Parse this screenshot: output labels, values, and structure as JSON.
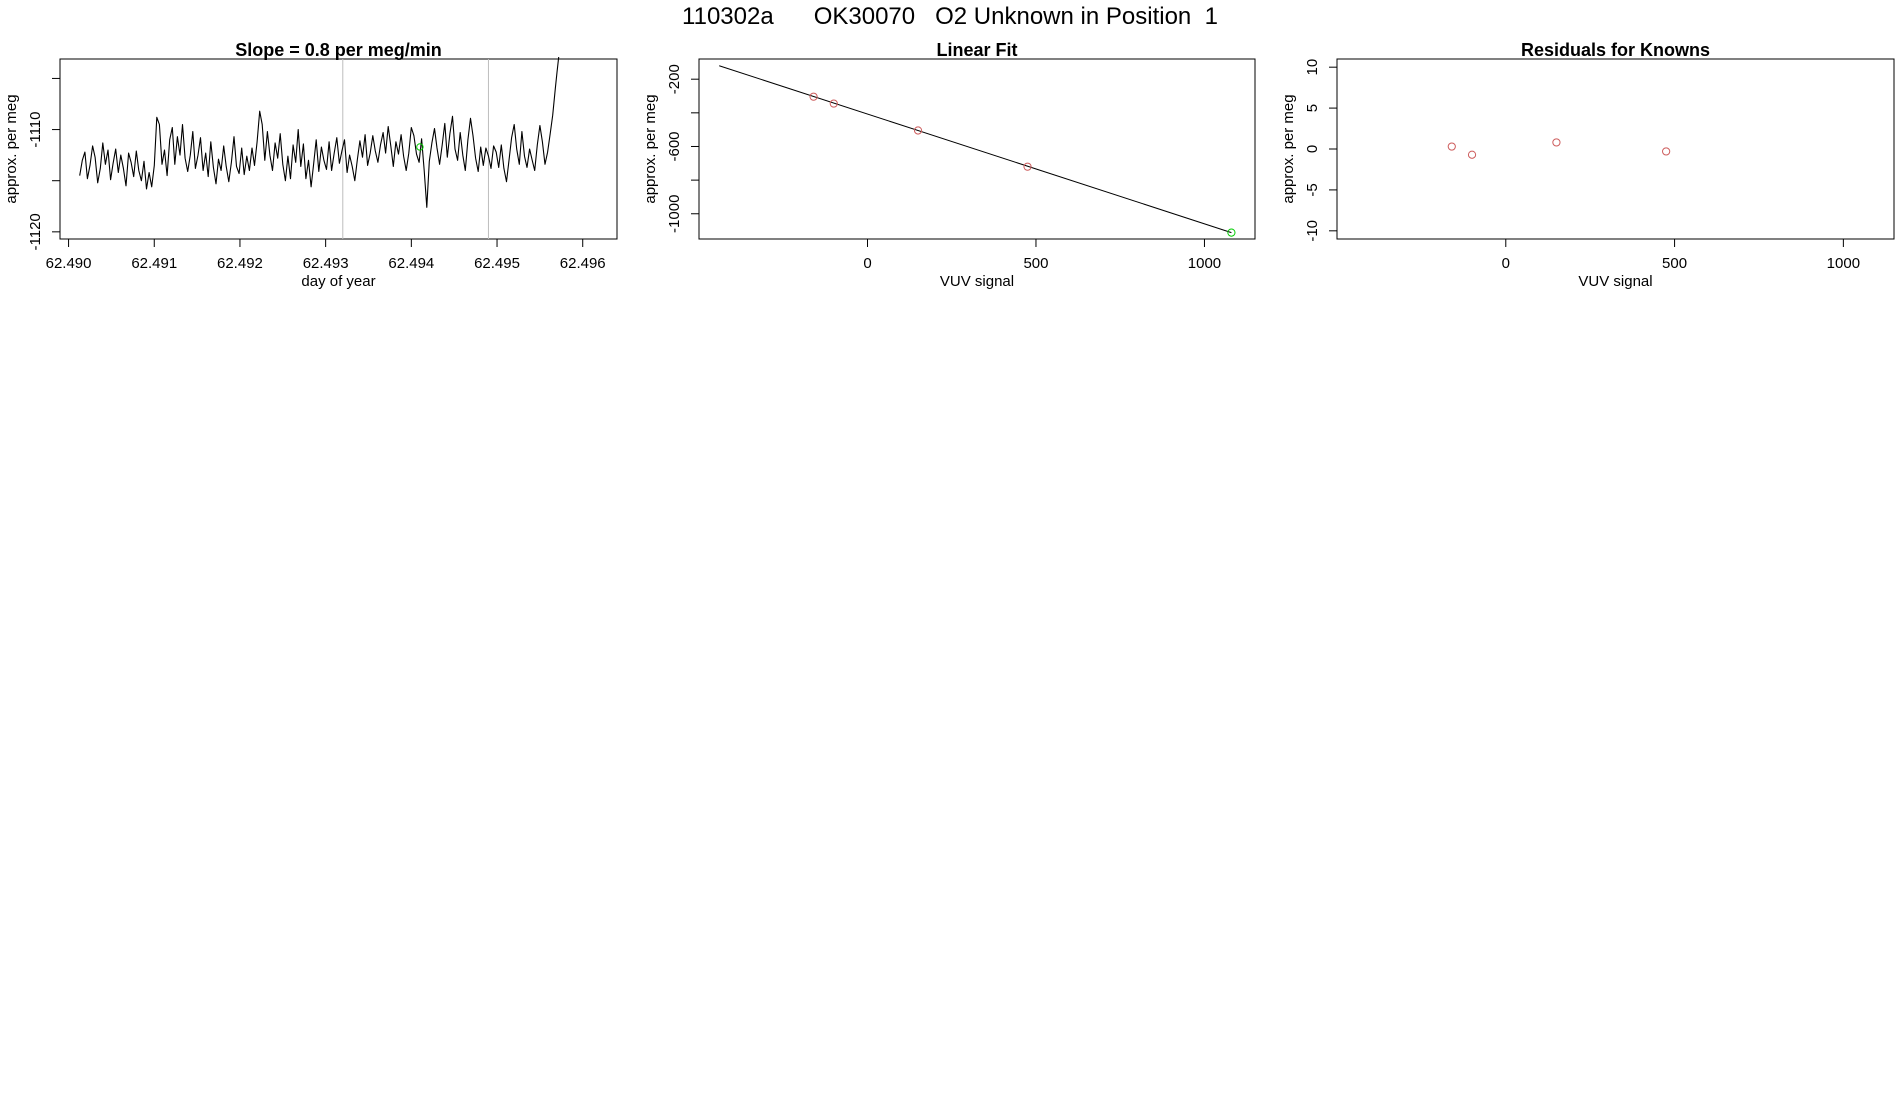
{
  "page": {
    "title": "110302a      OK30070   O2 Unknown in Position  1"
  },
  "colors": {
    "line": "#000000",
    "known": "#cd5c5c",
    "unknown": "#00cd00",
    "guide": "#bebebe"
  },
  "chart_data": [
    {
      "type": "line",
      "title": "Slope =  0.8  per meg/min",
      "xlabel": "day of year",
      "ylabel": "approx. per meg",
      "xlim": [
        62.4899,
        62.4964
      ],
      "ylim": [
        -1120.7,
        -1103.1
      ],
      "xticks": [
        62.49,
        62.491,
        62.492,
        62.493,
        62.494,
        62.495,
        62.496
      ],
      "xtick_labels": [
        "62.490",
        "62.491",
        "62.492",
        "62.493",
        "62.494",
        "62.495",
        "62.496"
      ],
      "yticks": [
        -1120,
        -1115,
        -1110,
        -1105
      ],
      "ytick_labels": [
        "-1120",
        "",
        "-1110",
        ""
      ],
      "vlines": [
        62.4932,
        62.4949
      ],
      "highlight_point": {
        "x": 62.4941,
        "y": -1111.7
      },
      "series": [
        {
          "x": [
            62.49013,
            62.49016,
            62.49019,
            62.49022,
            62.49025,
            62.49028,
            62.49031,
            62.49034,
            62.49037,
            62.4904,
            62.49043,
            62.49046,
            62.49049,
            62.49052,
            62.49055,
            62.49058,
            62.49061,
            62.49064,
            62.49067,
            62.4907,
            62.49073,
            62.49076,
            62.49079,
            62.49082,
            62.49085,
            62.49088,
            62.49091,
            62.49094,
            62.49097,
            62.491,
            62.49103,
            62.49106,
            62.49109,
            62.49112,
            62.49115,
            62.49118,
            62.49121,
            62.49124,
            62.49127,
            62.4913,
            62.49133,
            62.49136,
            62.49139,
            62.49142,
            62.49145,
            62.49148,
            62.49151,
            62.49154,
            62.49157,
            62.4916,
            62.49163,
            62.49166,
            62.49169,
            62.49172,
            62.49175,
            62.49178,
            62.49181,
            62.49184,
            62.49187,
            62.4919,
            62.49193,
            62.49196,
            62.49199,
            62.49202,
            62.49205,
            62.49208,
            62.49211,
            62.49214,
            62.49217,
            62.4922,
            62.49223,
            62.49226,
            62.49229,
            62.49232,
            62.49235,
            62.49238,
            62.49241,
            62.49244,
            62.49247,
            62.4925,
            62.49253,
            62.49256,
            62.49259,
            62.49262,
            62.49265,
            62.49268,
            62.49271,
            62.49274,
            62.49277,
            62.4928,
            62.49283,
            62.49286,
            62.49289,
            62.49292,
            62.49295,
            62.49298,
            62.49301,
            62.49304,
            62.49307,
            62.4931,
            62.49313,
            62.49316,
            62.49319,
            62.49322,
            62.49325,
            62.49328,
            62.49331,
            62.49334,
            62.49337,
            62.4934,
            62.49343,
            62.49346,
            62.49349,
            62.49352,
            62.49355,
            62.49358,
            62.49361,
            62.49364,
            62.49367,
            62.4937,
            62.49373,
            62.49376,
            62.49379,
            62.49382,
            62.49385,
            62.49388,
            62.49391,
            62.49394,
            62.49397,
            62.494,
            62.49403,
            62.49406,
            62.49409,
            62.49412,
            62.49415,
            62.49418,
            62.49421,
            62.49424,
            62.49427,
            62.4943,
            62.49433,
            62.49436,
            62.49439,
            62.49442,
            62.49445,
            62.49448,
            62.49451,
            62.49454,
            62.49457,
            62.4946,
            62.49463,
            62.49466,
            62.49469,
            62.49472,
            62.49475,
            62.49478,
            62.49481,
            62.49484,
            62.49487,
            62.4949,
            62.49493,
            62.49496,
            62.49499,
            62.49502,
            62.49505,
            62.49508,
            62.49511,
            62.49514,
            62.49517,
            62.4952,
            62.49523,
            62.49526,
            62.49529,
            62.49532,
            62.49535,
            62.49538,
            62.49541,
            62.49544,
            62.49547,
            62.4955,
            62.49553,
            62.49556,
            62.49559,
            62.49562,
            62.49565,
            62.49568,
            62.4957,
            62.49572
          ],
          "y": [
            -1114.5,
            -1113.0,
            -1112.2,
            -1114.8,
            -1113.5,
            -1111.6,
            -1112.7,
            -1115.2,
            -1113.8,
            -1111.3,
            -1113.4,
            -1112.0,
            -1114.9,
            -1113.3,
            -1111.9,
            -1114.2,
            -1112.5,
            -1113.8,
            -1115.5,
            -1112.3,
            -1113.2,
            -1114.6,
            -1112.1,
            -1114.0,
            -1115.0,
            -1113.1,
            -1115.8,
            -1114.2,
            -1115.6,
            -1113.5,
            -1108.8,
            -1109.5,
            -1113.4,
            -1112.0,
            -1114.5,
            -1111.0,
            -1109.8,
            -1113.4,
            -1110.7,
            -1112.5,
            -1109.5,
            -1112.8,
            -1114.1,
            -1112.5,
            -1110.2,
            -1113.8,
            -1112.5,
            -1110.8,
            -1114.0,
            -1112.3,
            -1114.6,
            -1111.2,
            -1113.7,
            -1115.3,
            -1112.9,
            -1114.0,
            -1111.6,
            -1113.6,
            -1115.1,
            -1113.2,
            -1110.7,
            -1113.6,
            -1114.3,
            -1111.8,
            -1114.4,
            -1112.6,
            -1114.0,
            -1111.8,
            -1113.5,
            -1111.2,
            -1108.2,
            -1109.5,
            -1113.0,
            -1110.2,
            -1112.5,
            -1114.0,
            -1111.3,
            -1112.8,
            -1110.4,
            -1113.4,
            -1115.0,
            -1112.6,
            -1114.8,
            -1111.5,
            -1113.2,
            -1110.0,
            -1113.6,
            -1111.4,
            -1114.8,
            -1113.0,
            -1115.6,
            -1113.4,
            -1111.0,
            -1114.1,
            -1111.7,
            -1113.0,
            -1113.9,
            -1111.2,
            -1114.0,
            -1112.3,
            -1110.8,
            -1113.3,
            -1112.1,
            -1111.0,
            -1114.2,
            -1112.5,
            -1113.6,
            -1115.0,
            -1112.9,
            -1111.1,
            -1112.7,
            -1110.5,
            -1113.5,
            -1112.3,
            -1110.6,
            -1112.1,
            -1113.2,
            -1111.5,
            -1110.3,
            -1112.3,
            -1109.7,
            -1111.6,
            -1113.6,
            -1111.2,
            -1112.4,
            -1110.5,
            -1112.6,
            -1114.0,
            -1112.3,
            -1109.8,
            -1110.6,
            -1112.4,
            -1113.2,
            -1110.9,
            -1114.0,
            -1117.6,
            -1113.1,
            -1111.3,
            -1109.9,
            -1111.8,
            -1113.4,
            -1111.5,
            -1109.4,
            -1112.7,
            -1110.4,
            -1108.7,
            -1111.9,
            -1113.0,
            -1110.3,
            -1112.5,
            -1114.0,
            -1111.0,
            -1108.9,
            -1110.6,
            -1112.8,
            -1114.1,
            -1111.7,
            -1113.5,
            -1111.8,
            -1112.6,
            -1113.8,
            -1111.6,
            -1112.2,
            -1113.7,
            -1111.5,
            -1113.8,
            -1115.1,
            -1113.0,
            -1110.8,
            -1109.5,
            -1111.9,
            -1113.4,
            -1110.2,
            -1112.6,
            -1113.7,
            -1111.9,
            -1113.0,
            -1114.0,
            -1111.5,
            -1109.6,
            -1111.2,
            -1113.4,
            -1112.2,
            -1110.4,
            -1108.6,
            -1106.0,
            -1104.4,
            -1102.9
          ]
        }
      ]
    },
    {
      "type": "scatter",
      "title": "Linear Fit",
      "xlabel": "VUV signal",
      "ylabel": "approx. per meg",
      "xlim": [
        -500,
        1150
      ],
      "ylim": [
        -1150,
        -80
      ],
      "xticks": [
        0,
        500,
        1000
      ],
      "xtick_labels": [
        "0",
        "500",
        "1000"
      ],
      "yticks": [
        -1000,
        -800,
        -600,
        -400,
        -200
      ],
      "ytick_labels": [
        "-1000",
        "",
        "-600",
        "",
        "-200"
      ],
      "fit_line": {
        "x": [
          -440,
          1080
        ],
        "y": [
          -120,
          -1112
        ]
      },
      "known_points": [
        {
          "x": -160,
          "y": -304
        },
        {
          "x": -100,
          "y": -345
        },
        {
          "x": 150,
          "y": -505
        },
        {
          "x": 475,
          "y": -720
        }
      ],
      "unknown_points": [
        {
          "x": 1080,
          "y": -1112
        }
      ]
    },
    {
      "type": "scatter",
      "title": "Residuals for Knowns",
      "xlabel": "VUV signal",
      "ylabel": "approx. per meg",
      "xlim": [
        -500,
        1150
      ],
      "ylim": [
        -11,
        11
      ],
      "xticks": [
        0,
        500,
        1000
      ],
      "xtick_labels": [
        "0",
        "500",
        "1000"
      ],
      "yticks": [
        -10,
        -5,
        0,
        5,
        10
      ],
      "ytick_labels": [
        "-10",
        "-5",
        "0",
        "5",
        "10"
      ],
      "points": [
        {
          "x": -160,
          "y": 0.3
        },
        {
          "x": -100,
          "y": -0.7
        },
        {
          "x": 150,
          "y": 0.8
        },
        {
          "x": 475,
          "y": -0.3
        }
      ]
    }
  ]
}
